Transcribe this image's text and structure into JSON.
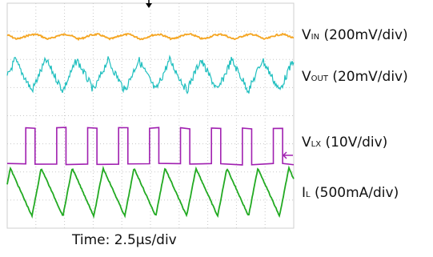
{
  "chart_data": {
    "type": "line",
    "xlabel": "Time: 2.5µs/div",
    "grid": "dotted 10x8 divisions",
    "series": [
      {
        "label_main": "V",
        "label_sub": "IN",
        "label_rest": " (200mV/div)",
        "color": "#f5a623",
        "shape": "ripple",
        "period_div": 1.08,
        "amplitude_div": 0.12,
        "offset_div": 0.45
      },
      {
        "label_main": "V",
        "label_sub": "OUT",
        "label_rest": " (20mV/div)",
        "color": "#1fbfbf",
        "shape": "triangle-noisy",
        "period_div": 1.08,
        "amplitude_div": 0.55,
        "offset_div": 1.55
      },
      {
        "label_main": "V",
        "label_sub": "LX",
        "label_rest": " (10V/div)",
        "color": "#a020b0",
        "shape": "pulse",
        "period_div": 1.08,
        "duty": 0.3,
        "high_div": 1.0
      },
      {
        "label_main": "I",
        "label_sub": "L",
        "label_rest": " (500mA/div)",
        "color": "#22aa22",
        "shape": "sawtooth",
        "period_div": 1.08,
        "amplitude_div": 0.95,
        "offset_div": 6.0
      }
    ]
  }
}
